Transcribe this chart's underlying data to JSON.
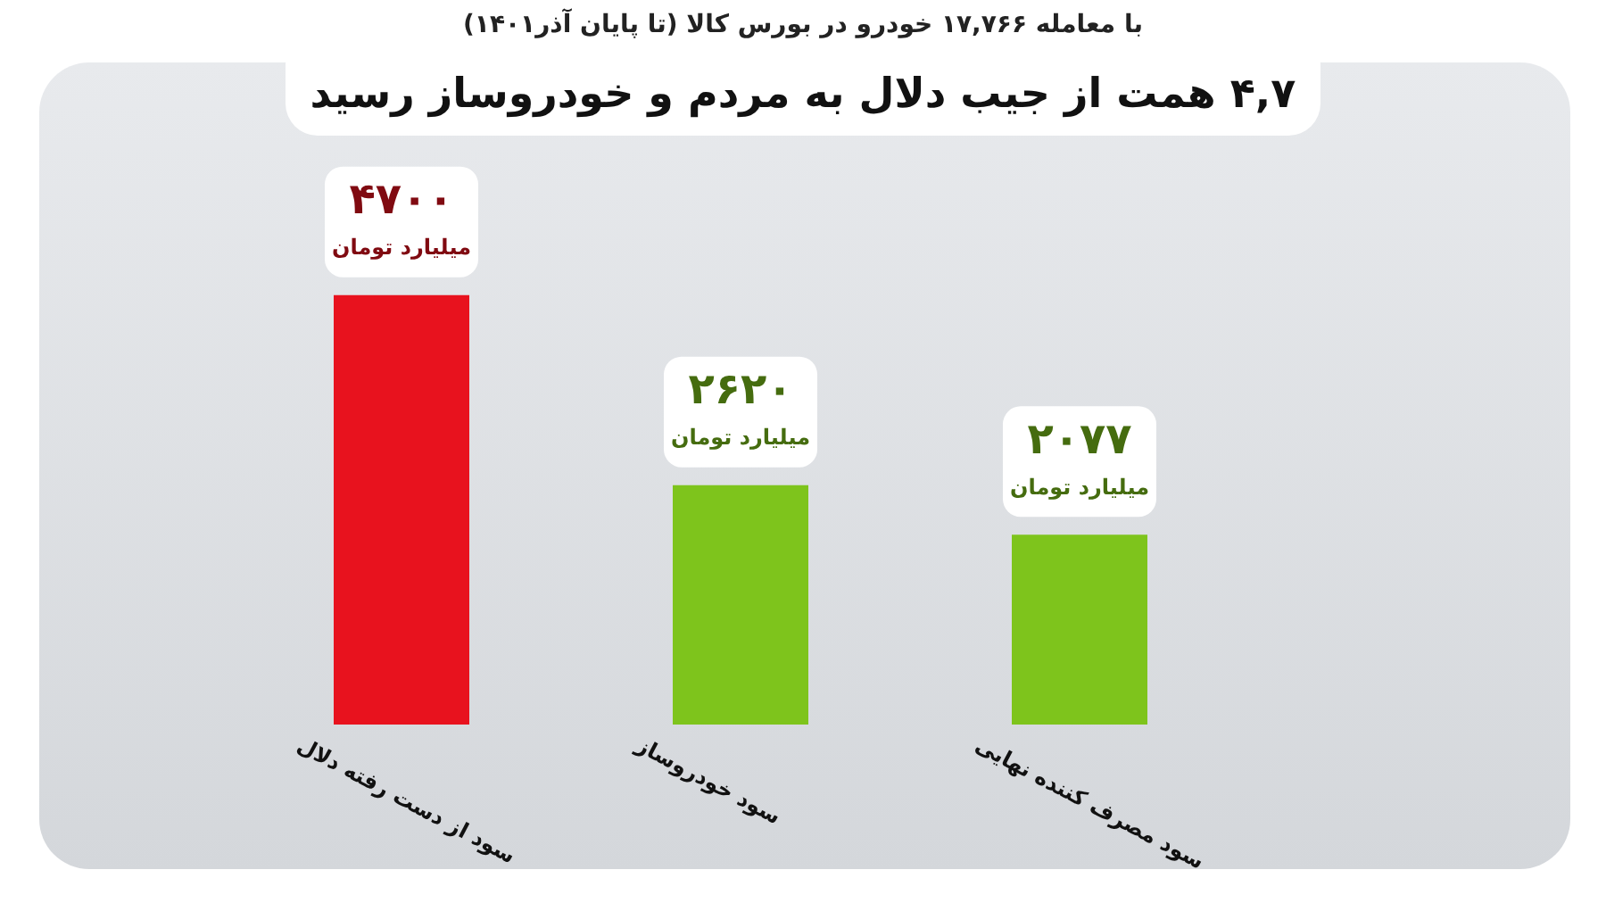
{
  "chart_data": {
    "type": "bar",
    "title": "۴,۷ همت از جیب دلال به مردم و خودروساز رسید",
    "subtitle": "با معامله ۱۷,۷۶۶ خودرو در بورس کالا (تا پایان آذر۱۴۰۱)",
    "categories": [
      "سود از دست رفته دلال",
      "سود خودروساز",
      "سود مصرف کننده نهایی"
    ],
    "values": [
      4700,
      2620,
      2077
    ],
    "colors": [
      "#e8121e",
      "#7ec41c",
      "#7ec41c"
    ],
    "value_labels": [
      "۴۷۰۰\nمیلیارد تومان",
      "۲۶۲۰\nمیلیارد تومان",
      "۲۰۷۷\nمیلیارد تومان"
    ]
  }
}
